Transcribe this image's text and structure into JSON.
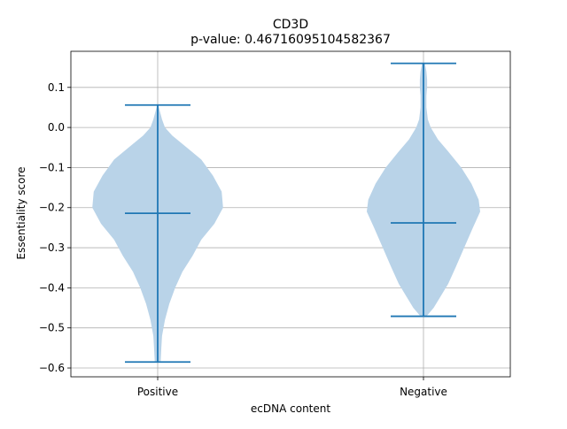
{
  "chart_data": {
    "type": "violin",
    "title": "CD3D",
    "subtitle": "p-value: 0.46716095104582367",
    "xlabel": "ecDNA content",
    "ylabel": "Essentiality score",
    "categories": [
      "Positive",
      "Negative"
    ],
    "ylim": [
      -0.622,
      0.19
    ],
    "yticks": [
      0.1,
      0.0,
      -0.1,
      -0.2,
      -0.3,
      -0.4,
      -0.5,
      -0.6
    ],
    "ytick_labels": [
      "0.1",
      "0.0",
      "−0.1",
      "−0.2",
      "−0.3",
      "−0.4",
      "−0.5",
      "−0.6"
    ],
    "grid": true,
    "colors": {
      "body": "#b9d3e8",
      "lines": "#1f77b4",
      "grid": "#b0b0b0",
      "spine": "#000000"
    },
    "violins": [
      {
        "category": "Positive",
        "max": 0.056,
        "median": -0.214,
        "min": -0.585,
        "density": [
          [
            0.056,
            0.004
          ],
          [
            0.04,
            0.015
          ],
          [
            0.02,
            0.03
          ],
          [
            0.0,
            0.05
          ],
          [
            -0.02,
            0.1
          ],
          [
            -0.05,
            0.2
          ],
          [
            -0.08,
            0.3
          ],
          [
            -0.12,
            0.38
          ],
          [
            -0.16,
            0.44
          ],
          [
            -0.2,
            0.45
          ],
          [
            -0.24,
            0.39
          ],
          [
            -0.28,
            0.3
          ],
          [
            -0.32,
            0.24
          ],
          [
            -0.36,
            0.17
          ],
          [
            -0.4,
            0.12
          ],
          [
            -0.44,
            0.08
          ],
          [
            -0.48,
            0.05
          ],
          [
            -0.52,
            0.03
          ],
          [
            -0.55,
            0.025
          ],
          [
            -0.585,
            0.02
          ]
        ]
      },
      {
        "category": "Negative",
        "max": 0.16,
        "median": -0.238,
        "min": -0.471,
        "density": [
          [
            0.16,
            0.01
          ],
          [
            0.14,
            0.02
          ],
          [
            0.12,
            0.025
          ],
          [
            0.1,
            0.025
          ],
          [
            0.08,
            0.02
          ],
          [
            0.05,
            0.02
          ],
          [
            0.02,
            0.03
          ],
          [
            0.0,
            0.05
          ],
          [
            -0.03,
            0.1
          ],
          [
            -0.06,
            0.17
          ],
          [
            -0.1,
            0.26
          ],
          [
            -0.14,
            0.33
          ],
          [
            -0.18,
            0.38
          ],
          [
            -0.21,
            0.39
          ],
          [
            -0.25,
            0.34
          ],
          [
            -0.3,
            0.28
          ],
          [
            -0.35,
            0.22
          ],
          [
            -0.39,
            0.17
          ],
          [
            -0.42,
            0.12
          ],
          [
            -0.45,
            0.07
          ],
          [
            -0.471,
            0.02
          ]
        ]
      }
    ]
  }
}
